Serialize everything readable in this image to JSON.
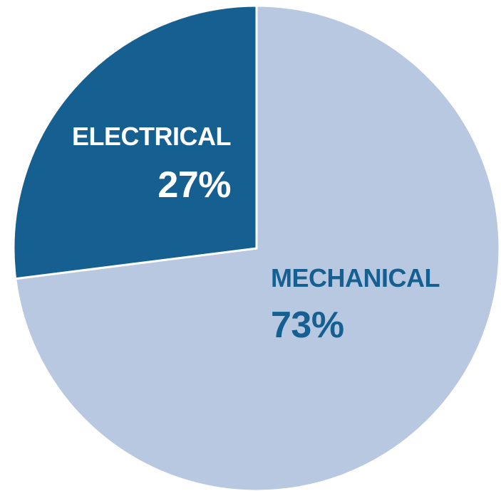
{
  "chart_data": {
    "type": "pie",
    "start_angle_deg": 0,
    "direction": "clockwise",
    "slices": [
      {
        "label": "MECHANICAL",
        "value": 73,
        "value_label": "73%",
        "color": "#b8c8e1",
        "text_color": "#155f91"
      },
      {
        "label": "ELECTRICAL",
        "value": 27,
        "value_label": "27%",
        "color": "#155f91",
        "text_color": "#ffffff"
      }
    ],
    "separator_color": "#ffffff"
  }
}
